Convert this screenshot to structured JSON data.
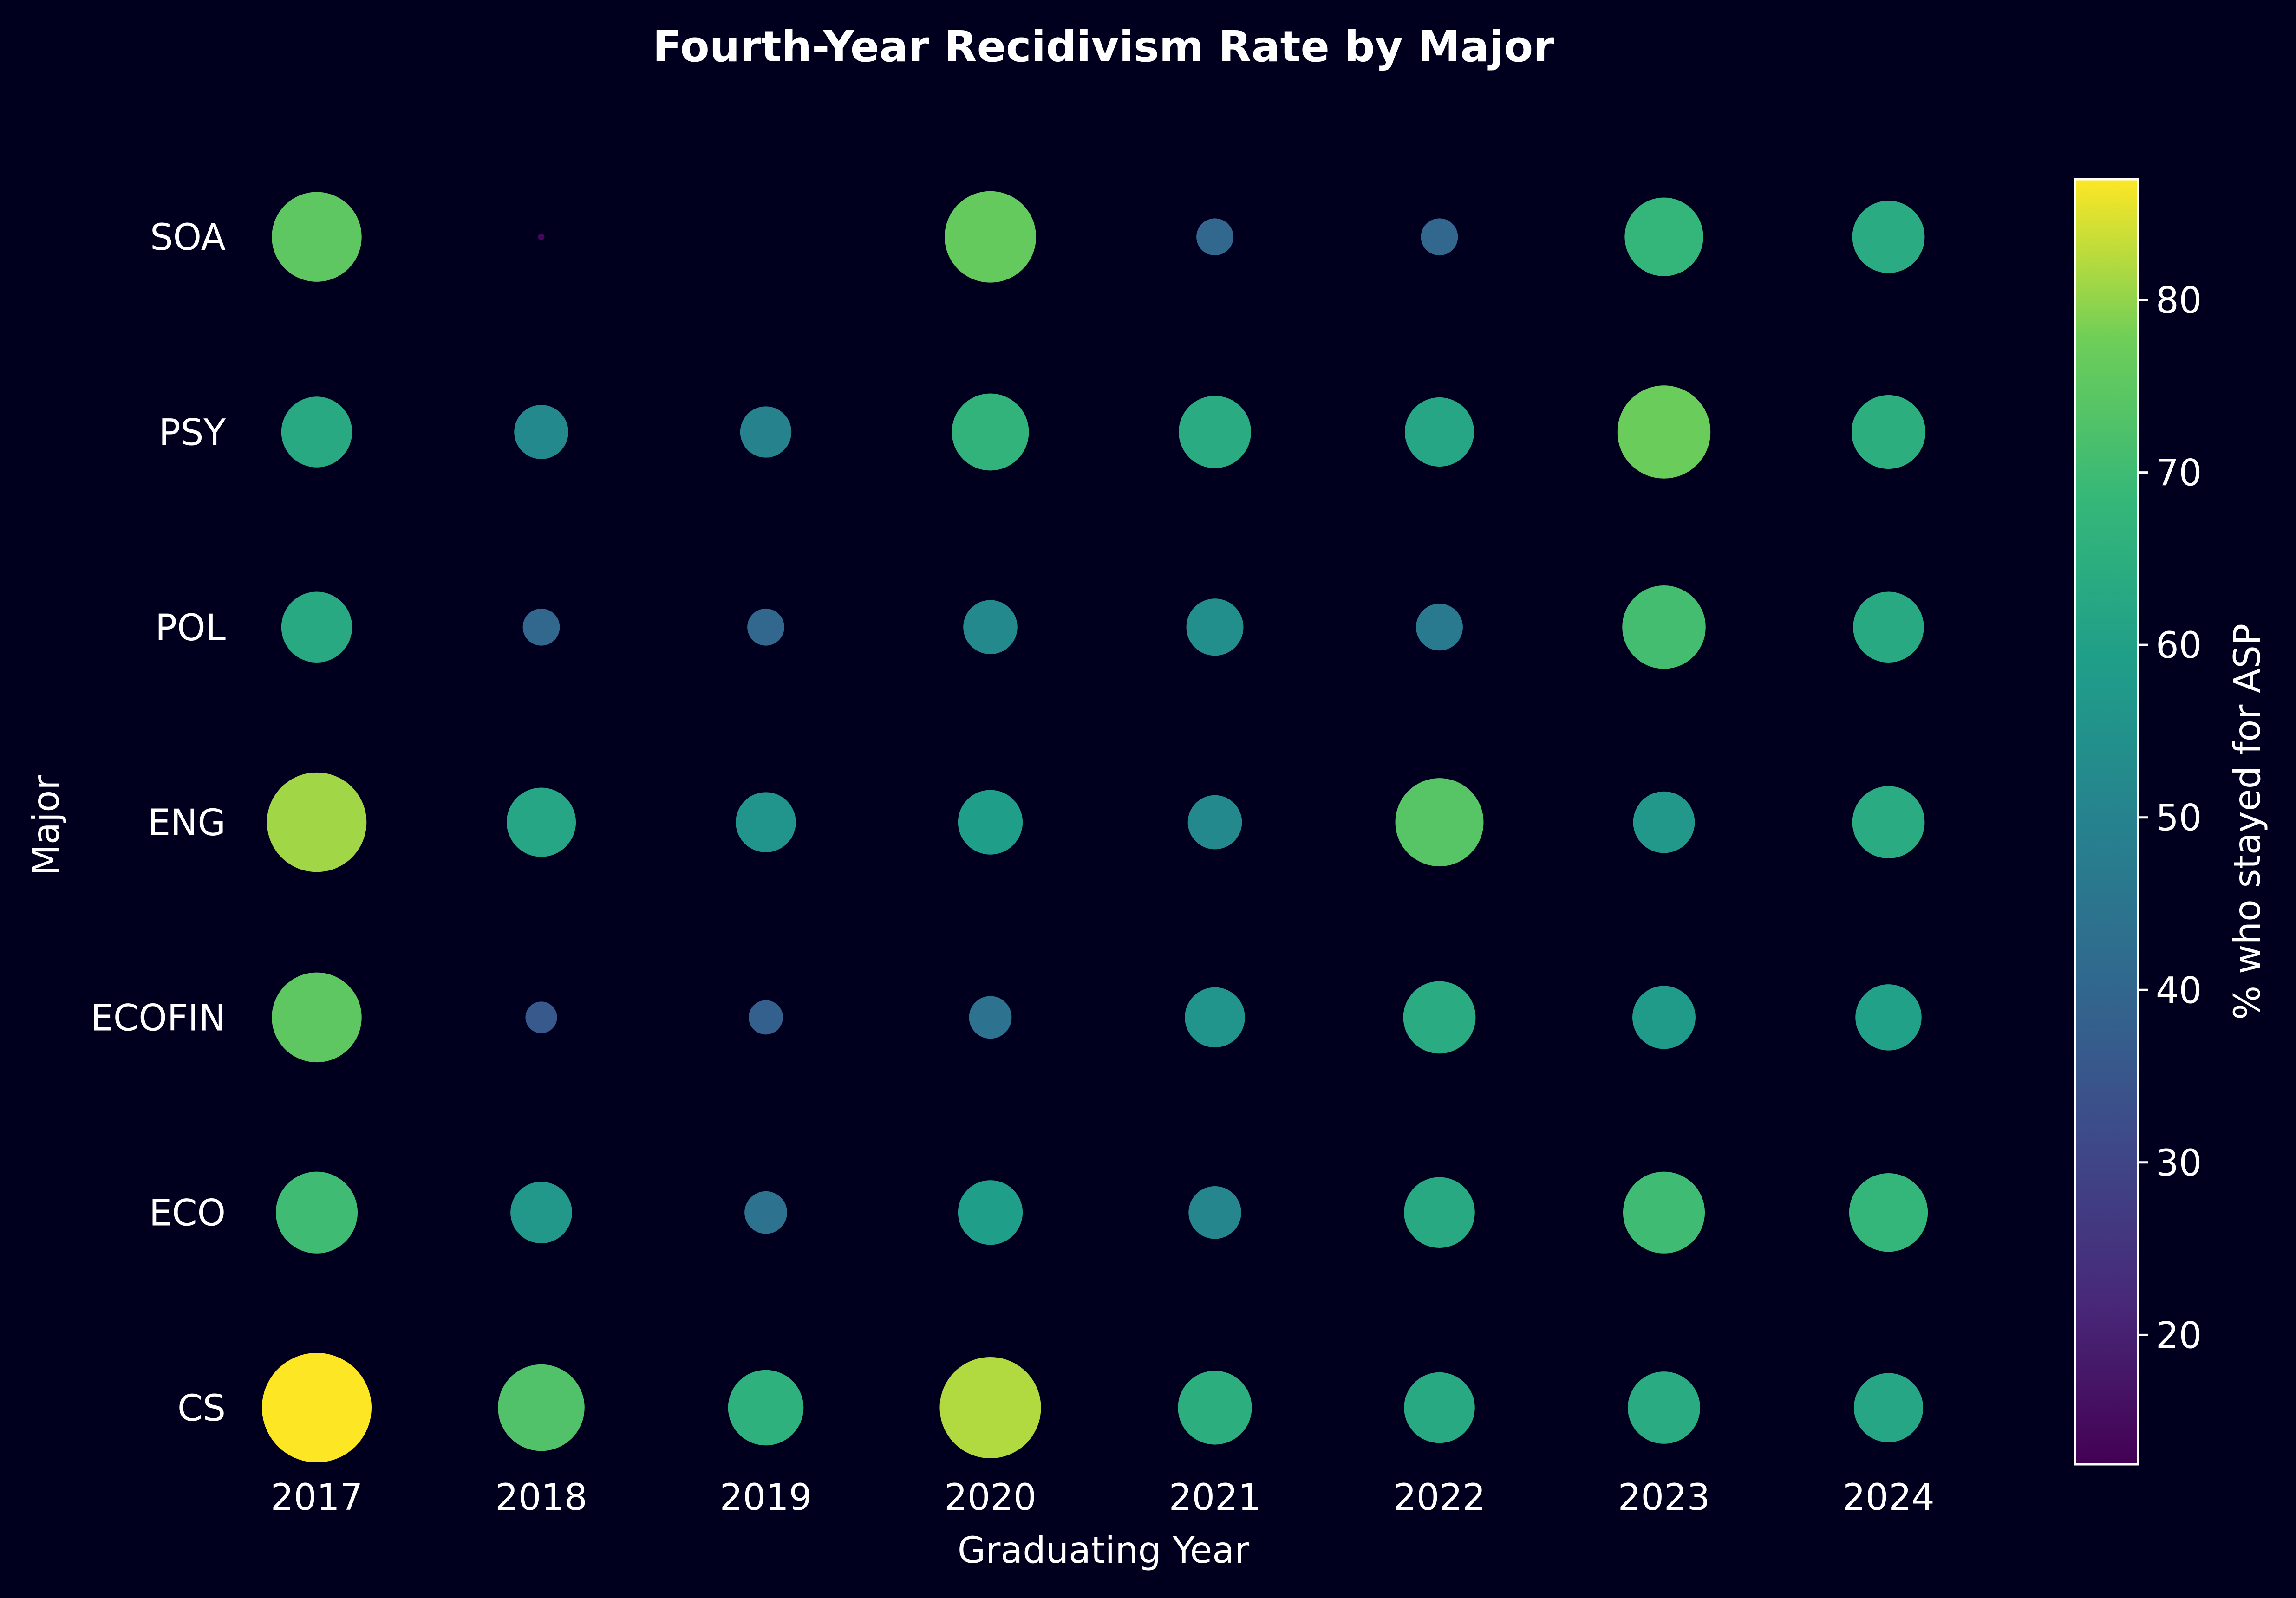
{
  "chart_data": {
    "type": "scatter",
    "subtype": "bubble",
    "title": "Fourth-Year Recidivism Rate by Major",
    "xlabel": "Graduating Year",
    "ylabel": "Major",
    "x_categories": [
      "2017",
      "2018",
      "2019",
      "2020",
      "2021",
      "2022",
      "2023",
      "2024"
    ],
    "y_categories": [
      "CS",
      "ECO",
      "ECOFIN",
      "ENG",
      "POL",
      "PSY",
      "SOA"
    ],
    "colorbar": {
      "label": "% who stayed for ASP",
      "colormap": "viridis",
      "range": [
        12.5,
        87
      ],
      "ticks": [
        20,
        30,
        40,
        50,
        60,
        70,
        80
      ]
    },
    "size_encodes": "% who stayed for ASP",
    "grid": false,
    "legend": "none",
    "background": "#00001e",
    "text_color": "#ffffff",
    "points": [
      {
        "major": "SOA",
        "year": "2017",
        "value": 75
      },
      {
        "major": "SOA",
        "year": "2018",
        "value": 14
      },
      {
        "major": "SOA",
        "year": "2020",
        "value": 76
      },
      {
        "major": "SOA",
        "year": "2021",
        "value": 40
      },
      {
        "major": "SOA",
        "year": "2022",
        "value": 40
      },
      {
        "major": "SOA",
        "year": "2023",
        "value": 68
      },
      {
        "major": "SOA",
        "year": "2024",
        "value": 64
      },
      {
        "major": "PSY",
        "year": "2017",
        "value": 63
      },
      {
        "major": "PSY",
        "year": "2018",
        "value": 52
      },
      {
        "major": "PSY",
        "year": "2019",
        "value": 50
      },
      {
        "major": "PSY",
        "year": "2020",
        "value": 67
      },
      {
        "major": "PSY",
        "year": "2021",
        "value": 64
      },
      {
        "major": "PSY",
        "year": "2022",
        "value": 62
      },
      {
        "major": "PSY",
        "year": "2023",
        "value": 77
      },
      {
        "major": "PSY",
        "year": "2024",
        "value": 65
      },
      {
        "major": "POL",
        "year": "2017",
        "value": 63
      },
      {
        "major": "POL",
        "year": "2018",
        "value": 40
      },
      {
        "major": "POL",
        "year": "2019",
        "value": 40
      },
      {
        "major": "POL",
        "year": "2020",
        "value": 52
      },
      {
        "major": "POL",
        "year": "2021",
        "value": 54
      },
      {
        "major": "POL",
        "year": "2022",
        "value": 47
      },
      {
        "major": "POL",
        "year": "2023",
        "value": 71
      },
      {
        "major": "POL",
        "year": "2024",
        "value": 63
      },
      {
        "major": "ENG",
        "year": "2017",
        "value": 81
      },
      {
        "major": "ENG",
        "year": "2018",
        "value": 62
      },
      {
        "major": "ENG",
        "year": "2019",
        "value": 56
      },
      {
        "major": "ENG",
        "year": "2020",
        "value": 59
      },
      {
        "major": "ENG",
        "year": "2021",
        "value": 52
      },
      {
        "major": "ENG",
        "year": "2022",
        "value": 74
      },
      {
        "major": "ENG",
        "year": "2023",
        "value": 57
      },
      {
        "major": "ENG",
        "year": "2024",
        "value": 64
      },
      {
        "major": "ECOFIN",
        "year": "2017",
        "value": 75
      },
      {
        "major": "ECOFIN",
        "year": "2018",
        "value": 36
      },
      {
        "major": "ECOFIN",
        "year": "2019",
        "value": 38
      },
      {
        "major": "ECOFIN",
        "year": "2020",
        "value": 44
      },
      {
        "major": "ECOFIN",
        "year": "2021",
        "value": 56
      },
      {
        "major": "ECOFIN",
        "year": "2022",
        "value": 64
      },
      {
        "major": "ECOFIN",
        "year": "2023",
        "value": 58
      },
      {
        "major": "ECOFIN",
        "year": "2024",
        "value": 60
      },
      {
        "major": "ECO",
        "year": "2017",
        "value": 70
      },
      {
        "major": "ECO",
        "year": "2018",
        "value": 57
      },
      {
        "major": "ECO",
        "year": "2019",
        "value": 44
      },
      {
        "major": "ECO",
        "year": "2020",
        "value": 59
      },
      {
        "major": "ECO",
        "year": "2021",
        "value": 51
      },
      {
        "major": "ECO",
        "year": "2022",
        "value": 63
      },
      {
        "major": "ECO",
        "year": "2023",
        "value": 70
      },
      {
        "major": "ECO",
        "year": "2024",
        "value": 68
      },
      {
        "major": "CS",
        "year": "2017",
        "value": 87
      },
      {
        "major": "CS",
        "year": "2018",
        "value": 73
      },
      {
        "major": "CS",
        "year": "2019",
        "value": 66
      },
      {
        "major": "CS",
        "year": "2020",
        "value": 82
      },
      {
        "major": "CS",
        "year": "2021",
        "value": 65
      },
      {
        "major": "CS",
        "year": "2022",
        "value": 63
      },
      {
        "major": "CS",
        "year": "2023",
        "value": 64
      },
      {
        "major": "CS",
        "year": "2024",
        "value": 62
      }
    ]
  }
}
